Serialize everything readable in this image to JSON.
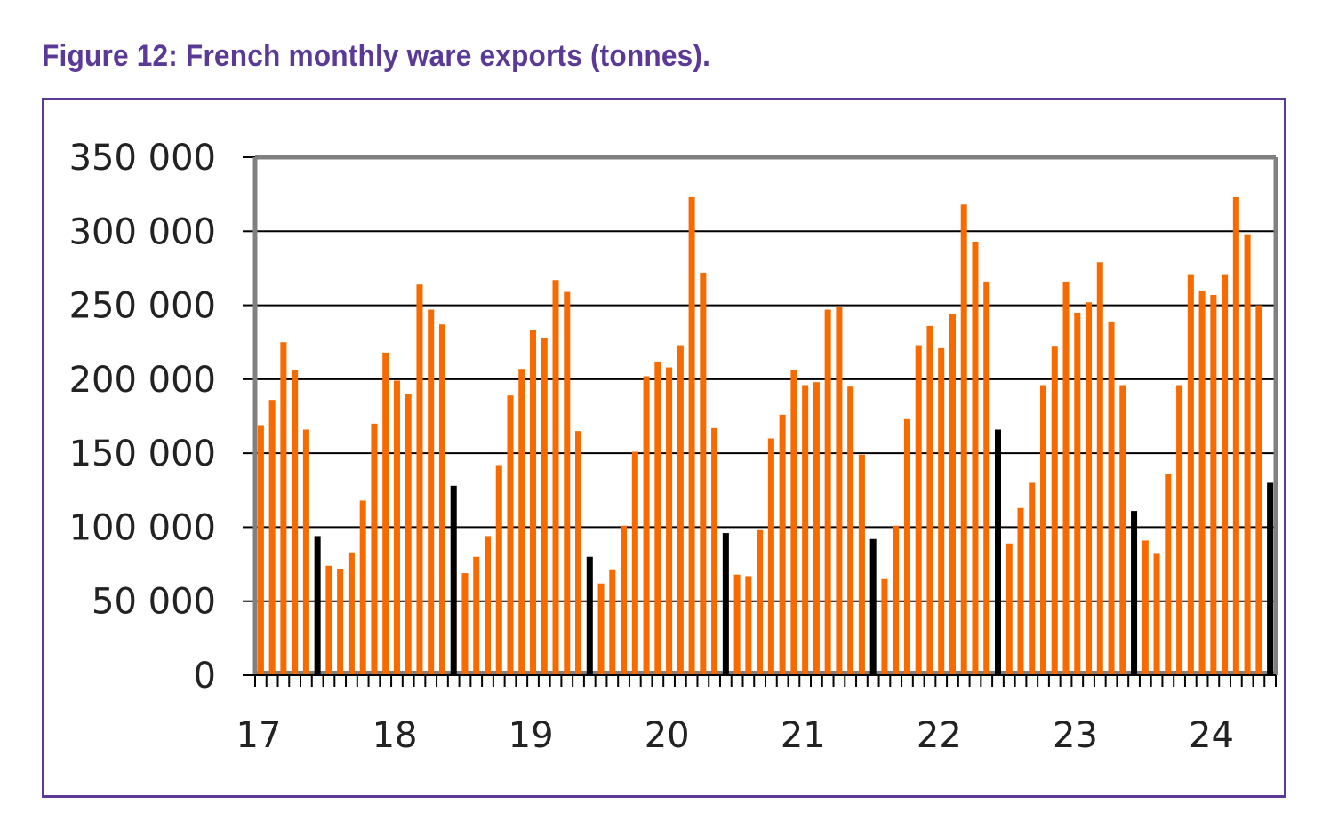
{
  "figure_title": "Figure 12: French monthly ware exports (tonnes).",
  "colors": {
    "title": "#5a3a96",
    "frame": "#5a3a96",
    "bar": "#f66a00",
    "highlight_bar": "#000000",
    "plot_border": "#808080",
    "grid": "#000000",
    "text": "#222222"
  },
  "chart_data": {
    "type": "bar",
    "title": "Figure 12: French monthly ware exports (tonnes).",
    "xlabel": "",
    "ylabel": "",
    "unit": "tonnes",
    "ylim": [
      0,
      350000
    ],
    "yticks": [
      0,
      50000,
      100000,
      150000,
      200000,
      250000,
      300000,
      350000
    ],
    "ytick_labels": [
      "0",
      "50 000",
      "100 000",
      "150 000",
      "200 000",
      "250 000",
      "300 000",
      "350 000"
    ],
    "xtick_labels": [
      "17",
      "18",
      "19",
      "20",
      "21",
      "22",
      "23",
      "24"
    ],
    "months_per_label": 12,
    "grid": true,
    "legend": "none",
    "values": [
      169000,
      186000,
      225000,
      206000,
      166000,
      94000,
      74000,
      72000,
      83000,
      118000,
      170000,
      218000,
      199000,
      190000,
      264000,
      247000,
      237000,
      128000,
      69000,
      80000,
      94000,
      142000,
      189000,
      207000,
      233000,
      228000,
      267000,
      259000,
      165000,
      80000,
      62000,
      71000,
      101000,
      151000,
      202000,
      212000,
      208000,
      223000,
      323000,
      272000,
      167000,
      96000,
      68000,
      67000,
      98000,
      160000,
      176000,
      206000,
      196000,
      198000,
      247000,
      249000,
      195000,
      149000,
      92000,
      65000,
      101000,
      173000,
      223000,
      236000,
      221000,
      244000,
      318000,
      293000,
      266000,
      166000,
      89000,
      113000,
      130000,
      196000,
      222000,
      266000,
      245000,
      252000,
      279000,
      239000,
      196000,
      111000,
      91000,
      82000,
      136000,
      196000,
      271000,
      260000,
      257000,
      271000,
      323000,
      298000,
      250000,
      130000
    ],
    "highlighted_indices": [
      5,
      17,
      29,
      41,
      54,
      65,
      77,
      89
    ]
  }
}
